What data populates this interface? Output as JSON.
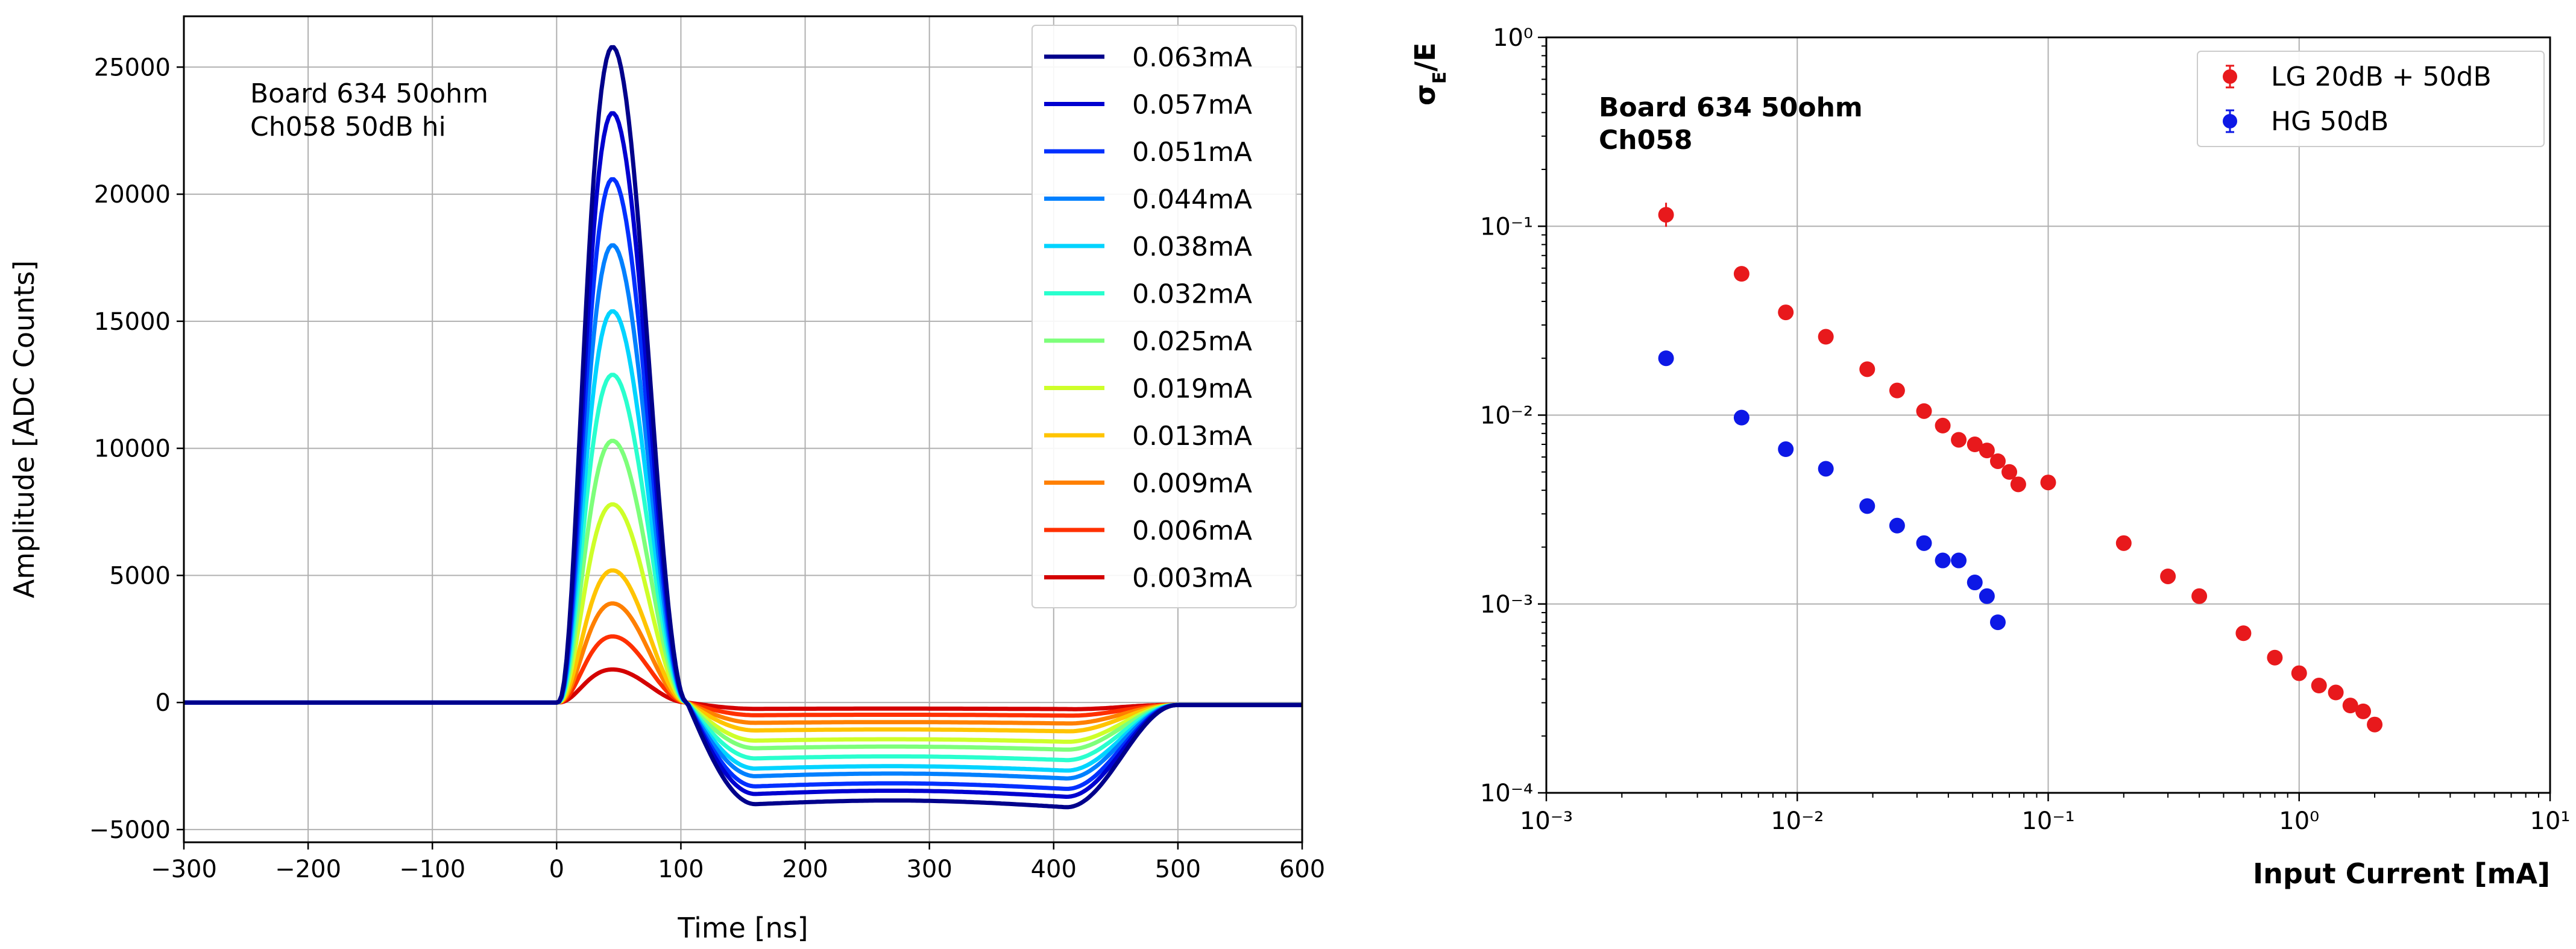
{
  "chart_data": [
    {
      "type": "line",
      "title": "",
      "xlabel": "Time [ns]",
      "ylabel": "Amplitude [ADC Counts]",
      "xlim": [
        -300,
        600
      ],
      "ylim": [
        -5500,
        27000
      ],
      "xticks": [
        -300,
        -200,
        -100,
        0,
        100,
        200,
        300,
        400,
        500,
        600
      ],
      "xtick_labels": [
        "−300",
        "−200",
        "−100",
        "0",
        "100",
        "200",
        "300",
        "400",
        "500",
        "600"
      ],
      "yticks": [
        -5000,
        0,
        5000,
        10000,
        15000,
        20000,
        25000
      ],
      "ytick_labels": [
        "−5000",
        "0",
        "5000",
        "10000",
        "15000",
        "20000",
        "25000"
      ],
      "grid": true,
      "legend_position": "top-right",
      "annotation": [
        "Board 634 50ohm",
        "Ch058 50dB hi"
      ],
      "pulse_shape": {
        "baseline_end_ns": 0,
        "peak_time_ns": 45,
        "zero_cross_ns": 105,
        "undershoot_start_ns": 160,
        "undershoot_end_ns": 410,
        "recovery_end_ns": 500
      },
      "series": [
        {
          "name": "0.063mA",
          "color": "#00008b",
          "peak": 25800,
          "undershoot": -4000
        },
        {
          "name": "0.057mA",
          "color": "#0000d0",
          "peak": 23200,
          "undershoot": -3600
        },
        {
          "name": "0.051mA",
          "color": "#0030ff",
          "peak": 20600,
          "undershoot": -3300
        },
        {
          "name": "0.044mA",
          "color": "#0080ff",
          "peak": 18000,
          "undershoot": -2900
        },
        {
          "name": "0.038mA",
          "color": "#00d4ff",
          "peak": 15400,
          "undershoot": -2600
        },
        {
          "name": "0.032mA",
          "color": "#29ffce",
          "peak": 12900,
          "undershoot": -2200
        },
        {
          "name": "0.025mA",
          "color": "#7dff7a",
          "peak": 10300,
          "undershoot": -1800
        },
        {
          "name": "0.019mA",
          "color": "#ceff29",
          "peak": 7800,
          "undershoot": -1500
        },
        {
          "name": "0.013mA",
          "color": "#ffc400",
          "peak": 5200,
          "undershoot": -1100
        },
        {
          "name": "0.009mA",
          "color": "#ff8000",
          "peak": 3900,
          "undershoot": -800
        },
        {
          "name": "0.006mA",
          "color": "#ff3000",
          "peak": 2600,
          "undershoot": -500
        },
        {
          "name": "0.003mA",
          "color": "#d40000",
          "peak": 1300,
          "undershoot": -250
        }
      ]
    },
    {
      "type": "scatter",
      "title": "",
      "xlabel": "Input Current [mA]",
      "ylabel": "σE/E",
      "xscale": "log",
      "yscale": "log",
      "xlim": [
        0.001,
        10
      ],
      "ylim": [
        0.0001,
        1
      ],
      "xtick_labels": [
        "10⁻³",
        "10⁻²",
        "10⁻¹",
        "10⁰",
        "10¹"
      ],
      "ytick_labels": [
        "10⁰",
        "10⁻¹",
        "10⁻²",
        "10⁻³",
        "10⁻⁴"
      ],
      "grid": true,
      "legend_position": "top-right",
      "annotation": [
        "Board 634 50ohm",
        "Ch058"
      ],
      "series": [
        {
          "name": "LG 20dB + 50dB",
          "color": "#e8191c",
          "x": [
            0.003,
            0.006,
            0.009,
            0.013,
            0.019,
            0.025,
            0.032,
            0.038,
            0.044,
            0.051,
            0.057,
            0.063,
            0.07,
            0.076,
            0.1,
            0.2,
            0.3,
            0.4,
            0.6,
            0.8,
            1.0,
            1.2,
            1.4,
            1.6,
            1.8,
            2.0
          ],
          "y": [
            0.115,
            0.056,
            0.035,
            0.026,
            0.0175,
            0.0135,
            0.0105,
            0.0088,
            0.0074,
            0.007,
            0.0065,
            0.0057,
            0.005,
            0.0043,
            0.0044,
            0.0021,
            0.0014,
            0.0011,
            0.0007,
            0.00052,
            0.00043,
            0.00037,
            0.00034,
            0.00029,
            0.00027,
            0.00023
          ]
        },
        {
          "name": "HG 50dB",
          "color": "#0d18e6",
          "x": [
            0.003,
            0.006,
            0.009,
            0.013,
            0.019,
            0.025,
            0.032,
            0.038,
            0.044,
            0.051,
            0.057,
            0.063
          ],
          "y": [
            0.02,
            0.0097,
            0.0066,
            0.0052,
            0.0033,
            0.0026,
            0.0021,
            0.0017,
            0.0017,
            0.0013,
            0.0011,
            0.0008
          ]
        }
      ]
    }
  ]
}
